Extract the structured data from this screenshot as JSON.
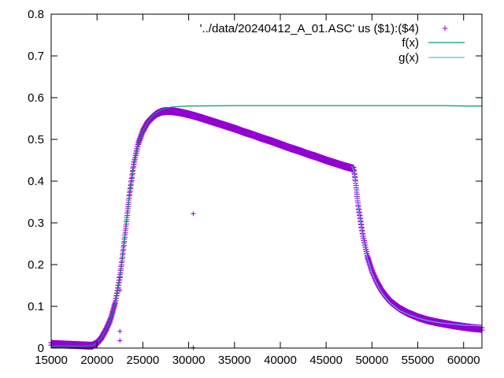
{
  "chart_data": {
    "type": "scatter",
    "xlim": [
      15000,
      62000
    ],
    "ylim": [
      0,
      0.8
    ],
    "x_ticks": [
      15000,
      20000,
      25000,
      30000,
      35000,
      40000,
      45000,
      50000,
      55000,
      60000
    ],
    "x_tick_labels": [
      "15000",
      "20000",
      "25000",
      "30000",
      "35000",
      "40000",
      "45000",
      "50000",
      "55000",
      "60000"
    ],
    "y_ticks": [
      0,
      0.1,
      0.2,
      0.3,
      0.4,
      0.5,
      0.6,
      0.7,
      0.8
    ],
    "y_tick_labels": [
      "0",
      "0.1",
      "0.2",
      "0.3",
      "0.4",
      "0.5",
      "0.6",
      "0.7",
      "0.8"
    ],
    "grid": false,
    "legend_position": "top-right",
    "series": [
      {
        "name": "'../data/20240412_A_01.ASC' us ($1):($4)",
        "kind": "points",
        "marker": "plus",
        "color": "#9400d3",
        "x": [
          15000,
          16000,
          17000,
          18000,
          19000,
          19500,
          20000,
          20500,
          21000,
          21500,
          22000,
          22500,
          23000,
          23500,
          24000,
          24500,
          25000,
          25500,
          26000,
          26500,
          27000,
          27500,
          28000,
          29000,
          30000,
          31000,
          32000,
          33000,
          34000,
          35000,
          36000,
          37000,
          38000,
          39000,
          40000,
          41000,
          42000,
          43000,
          44000,
          45000,
          46000,
          47000,
          47500,
          48000,
          48200,
          48500,
          49000,
          49500,
          50000,
          50500,
          51000,
          51500,
          52000,
          53000,
          54000,
          55000,
          56000,
          57000,
          58000,
          59000,
          60000,
          61000,
          62000
        ],
        "y": [
          0.01,
          0.009,
          0.008,
          0.007,
          0.006,
          0.006,
          0.012,
          0.025,
          0.045,
          0.07,
          0.11,
          0.17,
          0.26,
          0.36,
          0.44,
          0.49,
          0.52,
          0.54,
          0.552,
          0.561,
          0.566,
          0.568,
          0.568,
          0.565,
          0.56,
          0.554,
          0.547,
          0.54,
          0.533,
          0.526,
          0.518,
          0.511,
          0.503,
          0.496,
          0.488,
          0.48,
          0.473,
          0.465,
          0.458,
          0.45,
          0.443,
          0.436,
          0.433,
          0.43,
          0.4,
          0.34,
          0.27,
          0.22,
          0.185,
          0.16,
          0.14,
          0.125,
          0.112,
          0.095,
          0.083,
          0.074,
          0.067,
          0.062,
          0.058,
          0.054,
          0.051,
          0.048,
          0.046
        ]
      },
      {
        "name": "f(x)",
        "kind": "line",
        "color": "#009e73",
        "x": [
          15000,
          16000,
          17000,
          18000,
          19000,
          19500,
          20000,
          20500,
          21000,
          21500,
          22000,
          22500,
          23000,
          23500,
          24000,
          24500,
          25000,
          25500,
          26000,
          26500,
          27000,
          27500,
          28000,
          29000,
          30000,
          35000,
          40000,
          45000,
          50000,
          55000,
          58000,
          60000,
          61000,
          62000
        ],
        "y": [
          0.005,
          0.005,
          0.005,
          0.005,
          0.005,
          0.006,
          0.012,
          0.025,
          0.045,
          0.07,
          0.11,
          0.17,
          0.26,
          0.36,
          0.44,
          0.49,
          0.52,
          0.54,
          0.555,
          0.565,
          0.571,
          0.575,
          0.577,
          0.579,
          0.58,
          0.581,
          0.581,
          0.581,
          0.581,
          0.581,
          0.581,
          0.58,
          0.58,
          0.58
        ]
      },
      {
        "name": "g(x)",
        "kind": "line",
        "color": "#56b4e9",
        "x": [
          47800,
          48000,
          48200,
          48500,
          49000,
          49500,
          50000,
          50500,
          51000,
          51500,
          52000,
          53000,
          54000,
          55000,
          56000,
          57000,
          58000,
          59000,
          60000,
          61000,
          62000
        ],
        "y": [
          0.436,
          0.425,
          0.395,
          0.335,
          0.265,
          0.215,
          0.18,
          0.155,
          0.135,
          0.12,
          0.108,
          0.09,
          0.08,
          0.072,
          0.066,
          0.062,
          0.059,
          0.057,
          0.055,
          0.054,
          0.053
        ]
      }
    ],
    "outliers": {
      "x": [
        22500,
        22500,
        22500,
        30500,
        30500
      ],
      "y": [
        0.139,
        0.04,
        0.018,
        0.322,
        0.001
      ]
    }
  }
}
